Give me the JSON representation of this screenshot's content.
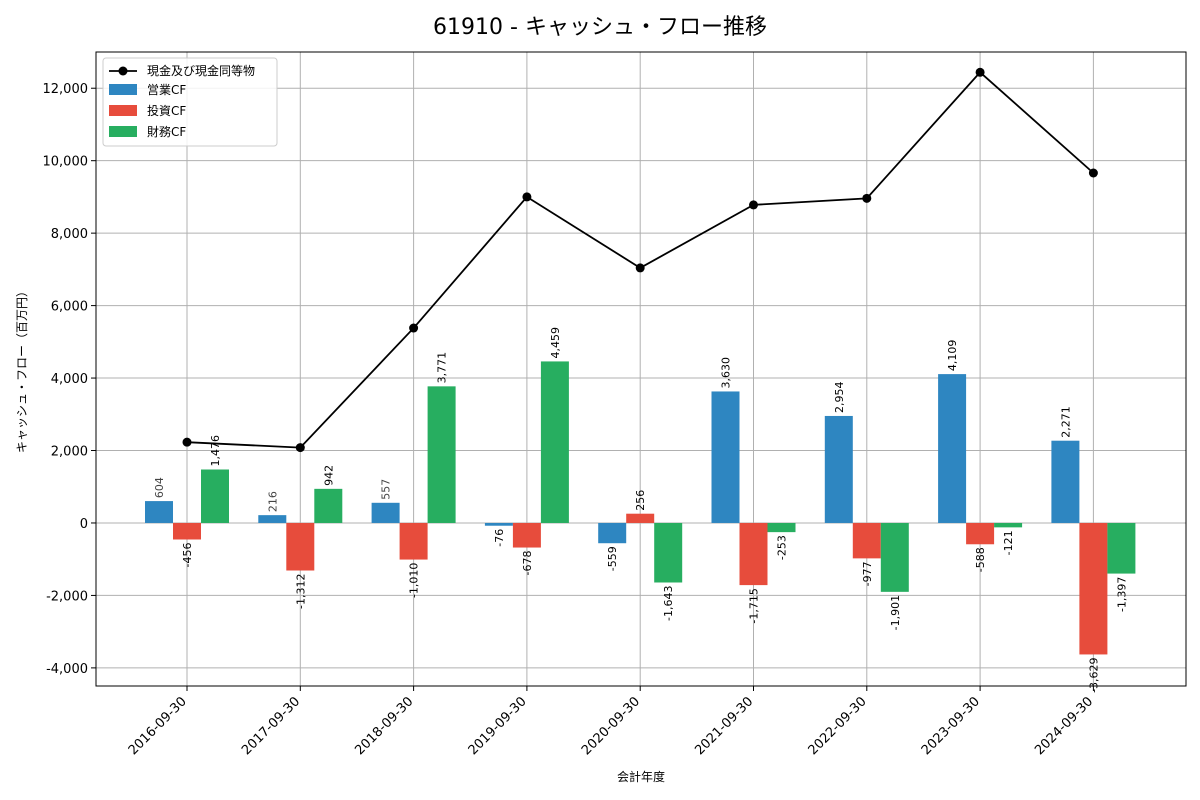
{
  "chart_data": {
    "type": "bar",
    "title": "61910 - キャッシュ・フロー推移",
    "xlabel": "会計年度",
    "ylabel": "キャッシュ・フロー（百万円）",
    "categories": [
      "2016-09-30",
      "2017-09-30",
      "2018-09-30",
      "2019-09-30",
      "2020-09-30",
      "2021-09-30",
      "2022-09-30",
      "2023-09-30",
      "2024-09-30"
    ],
    "ylim": [
      -4500,
      13000
    ],
    "yticks": [
      -4000,
      -2000,
      0,
      2000,
      4000,
      6000,
      8000,
      10000,
      12000
    ],
    "ytick_labels": [
      "-4,000",
      "-2,000",
      "0",
      "2,000",
      "4,000",
      "6,000",
      "8,000",
      "10,000",
      "12,000"
    ],
    "grid": true,
    "legend_position": "top-left",
    "line_series": {
      "name": "現金及び現金同等物",
      "color": "#000000",
      "values": [
        2230,
        2080,
        5380,
        9000,
        7040,
        8780,
        8960,
        12440,
        9660
      ]
    },
    "series": [
      {
        "name": "営業CF",
        "color": "#2e86c1",
        "values": [
          604,
          216,
          557,
          -76,
          -559,
          3630,
          2954,
          4109,
          2271
        ],
        "labels": [
          "604",
          "216",
          "557",
          "-76",
          "-559",
          "3,630",
          "2,954",
          "4,109",
          "2,271"
        ]
      },
      {
        "name": "投資CF",
        "color": "#e74c3c",
        "values": [
          -456,
          -1312,
          -1010,
          -678,
          256,
          -1715,
          -977,
          -588,
          -3629
        ],
        "labels": [
          "-456",
          "-1,312",
          "-1,010",
          "-678",
          "256",
          "-1,715",
          "-977",
          "-588",
          "-3,629"
        ]
      },
      {
        "name": "財務CF",
        "color": "#27ae60",
        "values": [
          1476,
          942,
          3771,
          4459,
          -1643,
          -253,
          -1901,
          -121,
          -1397
        ],
        "labels": [
          "1,476",
          "942",
          "3,771",
          "4,459",
          "-1,643",
          "-253",
          "-1,901",
          "-121",
          "-1,397"
        ]
      }
    ]
  }
}
